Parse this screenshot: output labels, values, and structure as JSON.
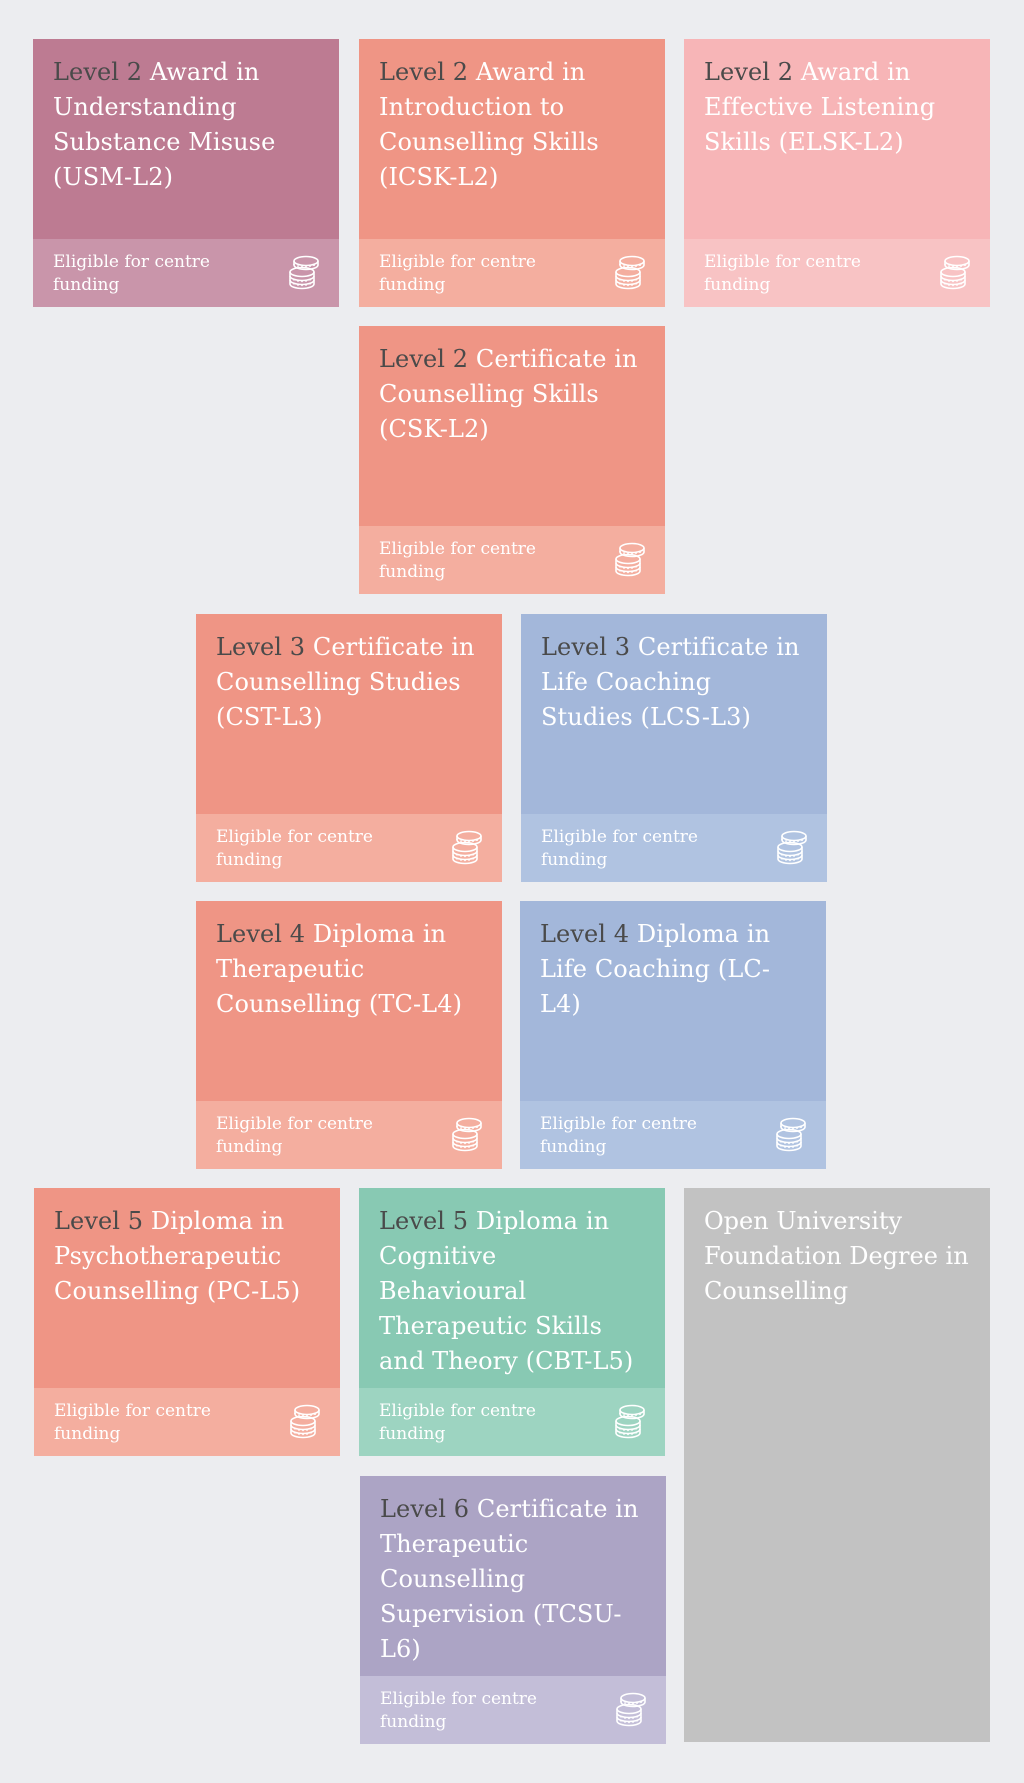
{
  "colors": {
    "background": "#ecedf0",
    "mauve": "#bd7b92",
    "mauve_light": "#c995aa",
    "coral": "#ef9585",
    "coral_light": "#f4ae9f",
    "pink": "#f7b5b7",
    "pink_light": "#f8c3c4",
    "blue": "#a3b7da",
    "blue_light": "#b0c3e1",
    "green": "#88c9b3",
    "green_light": "#9dd4c1",
    "purple": "#aca4c5",
    "purple_light": "#c3bed8",
    "grey": "#c2c2c2",
    "level_text": "#4a4a4a"
  },
  "funding_label": "Eligible for centre funding",
  "funding_icon": "coins-stack-icon",
  "cards": [
    {
      "id": "usm-l2",
      "level": "Level 2",
      "title": " Award in Understanding Substance Misuse (USM-L2)",
      "color": "#bd7b92",
      "color_light": "#c995aa"
    },
    {
      "id": "icsk-l2",
      "level": "Level 2",
      "title": " Award in Introduction to Counselling Skills (ICSK-L2)",
      "color": "#ef9585",
      "color_light": "#f4ae9f"
    },
    {
      "id": "elsk-l2",
      "level": "Level 2",
      "title": " Award in Effective Listening Skills (ELSK-L2)",
      "color": "#f7b5b7",
      "color_light": "#f8c3c4"
    },
    {
      "id": "csk-l2",
      "level": "Level 2",
      "title": " Certificate in Counselling Skills (CSK-L2)",
      "color": "#ef9585",
      "color_light": "#f4ae9f"
    },
    {
      "id": "cst-l3",
      "level": "Level 3",
      "title": " Certificate in Counselling Studies (CST-L3)",
      "color": "#ef9585",
      "color_light": "#f4ae9f"
    },
    {
      "id": "lcs-l3",
      "level": "Level 3",
      "title": " Certificate in Life Coaching Studies (LCS-L3)",
      "color": "#a3b7da",
      "color_light": "#b0c3e1"
    },
    {
      "id": "tc-l4",
      "level": "Level 4",
      "title": " Diploma in Therapeutic Counselling (TC-L4)",
      "color": "#ef9585",
      "color_light": "#f4ae9f"
    },
    {
      "id": "lc-l4",
      "level": "Level 4",
      "title": " Diploma in Life Coaching (LC-L4)",
      "color": "#a3b7da",
      "color_light": "#b0c3e1"
    },
    {
      "id": "pc-l5",
      "level": "Level 5",
      "title": " Diploma in Psychotherapeutic Counselling (PC-L5)",
      "color": "#ef9585",
      "color_light": "#f4ae9f"
    },
    {
      "id": "cbt-l5",
      "level": "Level 5",
      "title": " Diploma in Cognitive Behavioural Therapeutic Skills and Theory (CBT-L5)",
      "color": "#88c9b3",
      "color_light": "#9dd4c1"
    },
    {
      "id": "tcsu-l6",
      "level": "Level 6",
      "title": " Certificate in Therapeutic Counselling Supervision (TCSU-L6)",
      "color": "#aca4c5",
      "color_light": "#c3bed8"
    }
  ],
  "open_university": {
    "title": "Open University Foundation Degree in Counselling",
    "color": "#c2c2c2"
  }
}
